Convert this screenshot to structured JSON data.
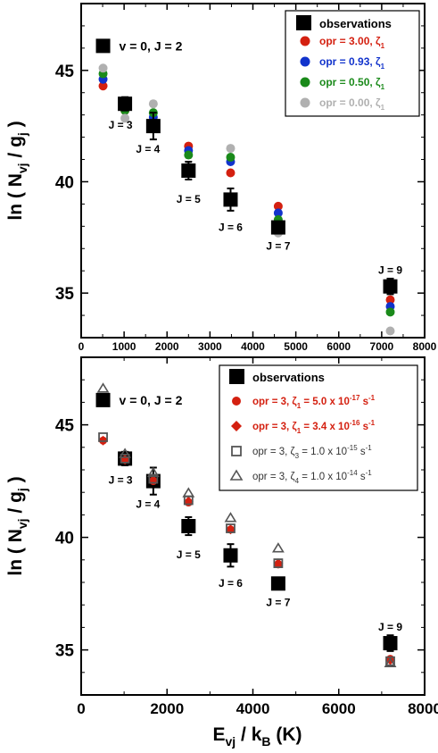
{
  "chart_data": [
    {
      "type": "scatter",
      "ylabel": {
        "main": "ln ( N",
        "sub": "vj",
        "mid": " / g",
        "sub2": "j",
        "end": " )"
      },
      "xlim": [
        0,
        8000
      ],
      "ylim": [
        33,
        48
      ],
      "xticks": [
        0,
        1000,
        2000,
        3000,
        4000,
        5000,
        6000,
        7000,
        8000
      ],
      "yticks": [
        35,
        40,
        45
      ],
      "legend": {
        "placement": "top-right"
      },
      "level_labels": [
        "v = 0, J = 2",
        "J = 3",
        "J = 4",
        "J = 5",
        "J = 6",
        "J = 7",
        "J = 9"
      ],
      "observations": {
        "name": "observations",
        "color": "#000000",
        "x": [
          510,
          1020,
          1680,
          2500,
          3480,
          4590,
          7200
        ],
        "y": [
          46.1,
          43.5,
          42.5,
          40.5,
          39.2,
          37.95,
          35.3
        ],
        "yerr": [
          0,
          0.3,
          0.6,
          0.4,
          0.5,
          0.25,
          0.35
        ]
      },
      "series": [
        {
          "name": "opr = 3.00, ζ",
          "sub": "1",
          "color": "#d42010",
          "x": [
            510,
            1020,
            1680,
            2500,
            3480,
            4590,
            7200
          ],
          "y": [
            44.3,
            43.2,
            42.5,
            41.6,
            40.4,
            38.9,
            34.7
          ]
        },
        {
          "name": "opr = 0.93, ζ",
          "sub": "1",
          "color": "#1133cc",
          "x": [
            510,
            1020,
            1680,
            2500,
            3480,
            4590,
            7200
          ],
          "y": [
            44.6,
            43.35,
            42.9,
            41.4,
            40.9,
            38.6,
            34.4
          ]
        },
        {
          "name": "opr = 0.50, ζ",
          "sub": "1",
          "color": "#1a8a1a",
          "x": [
            510,
            1020,
            1680,
            2500,
            3480,
            4590,
            7200
          ],
          "y": [
            44.85,
            43.2,
            43.1,
            41.2,
            41.1,
            38.3,
            34.15
          ]
        },
        {
          "name": "opr = 0.00, ζ",
          "sub": "1",
          "color": "#b0b0b0",
          "x": [
            510,
            1020,
            1680,
            2500,
            3480,
            4590,
            7200
          ],
          "y": [
            45.1,
            42.85,
            43.5,
            40.7,
            41.5,
            37.7,
            33.3
          ]
        }
      ]
    },
    {
      "type": "scatter",
      "xlabel": {
        "main": "E",
        "sub": "vj",
        "mid": " / k",
        "sub2": "B",
        "end": " (K)"
      },
      "ylabel": {
        "main": "ln ( N",
        "sub": "vj",
        "mid": " / g",
        "sub2": "j",
        "end": " )"
      },
      "xlim": [
        0,
        8000
      ],
      "ylim": [
        33,
        48
      ],
      "xticks": [
        0,
        2000,
        4000,
        6000,
        8000
      ],
      "yticks": [
        35,
        40,
        45
      ],
      "legend": {
        "placement": "top-right"
      },
      "level_labels": [
        "v = 0, J = 2",
        "J = 3",
        "J = 4",
        "J = 5",
        "J = 6",
        "J = 7",
        "J = 9"
      ],
      "observations": {
        "name": "observations",
        "color": "#000000",
        "x": [
          510,
          1020,
          1680,
          2500,
          3480,
          4590,
          7200
        ],
        "y": [
          46.1,
          43.5,
          42.5,
          40.5,
          39.2,
          37.95,
          35.3
        ],
        "yerr": [
          0,
          0.3,
          0.6,
          0.4,
          0.5,
          0.25,
          0.35
        ]
      },
      "series": [
        {
          "name": "opr = 3, ζ",
          "sub": "1",
          "tail": " = 5.0 x 10",
          "exp": "-17",
          "unit": " s",
          "unitexp": "-1",
          "color": "#d42010",
          "marker": "circle",
          "x": [
            510,
            1020,
            1680,
            2500,
            3480,
            4590,
            7200
          ],
          "y": [
            44.3,
            43.45,
            42.5,
            41.55,
            40.35,
            38.8,
            34.6
          ]
        },
        {
          "name": "opr = 3, ζ",
          "sub": "1",
          "tail": " = 3.4 x 10",
          "exp": "-16",
          "unit": " s",
          "unitexp": "-1",
          "color": "#d42010",
          "marker": "diamond",
          "x": [
            510,
            1020,
            1680,
            2500,
            3480,
            4590,
            7200
          ],
          "y": [
            44.3,
            43.45,
            42.55,
            41.6,
            40.35,
            38.85,
            34.55
          ]
        },
        {
          "name": "opr = 3, ζ",
          "sub": "3",
          "tail": " = 1.0 x 10",
          "exp": "-15",
          "unit": " s",
          "unitexp": "-1",
          "color": "#555555",
          "marker": "square",
          "x": [
            510,
            1020,
            1680,
            2500,
            3480,
            4590,
            7200
          ],
          "y": [
            44.45,
            43.5,
            42.6,
            41.65,
            40.4,
            38.85,
            34.5
          ]
        },
        {
          "name": "opr = 3, ζ",
          "sub": "4",
          "tail": " = 1.0 x 10",
          "exp": "-14",
          "unit": " s",
          "unitexp": "-1",
          "color": "#555555",
          "marker": "triangle",
          "x": [
            510,
            1020,
            1680,
            2500,
            3480,
            4590,
            7200
          ],
          "y": [
            46.6,
            43.7,
            42.85,
            41.95,
            40.85,
            39.5,
            34.4
          ]
        }
      ]
    }
  ]
}
